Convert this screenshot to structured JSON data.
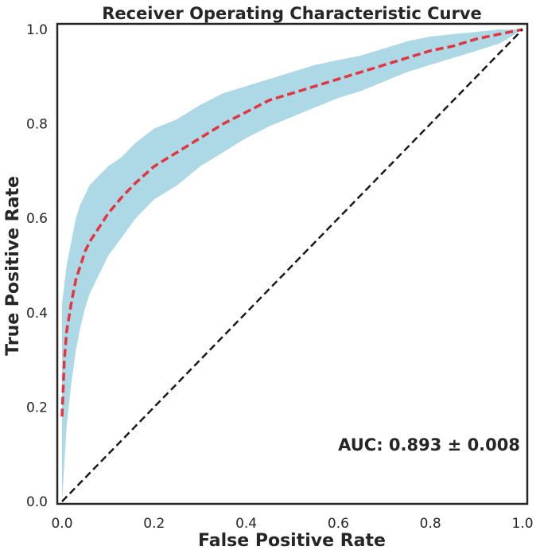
{
  "chart_data": {
    "type": "line",
    "title": "Receiver Operating Characteristic Curve",
    "xlabel": "False Positive Rate",
    "ylabel": "True Positive Rate",
    "xlim": [
      0.0,
      1.0
    ],
    "ylim": [
      0.0,
      1.0
    ],
    "xticks": [
      0.0,
      0.2,
      0.4,
      0.6,
      0.8,
      1.0
    ],
    "yticks": [
      0.0,
      0.2,
      0.4,
      0.6,
      0.8,
      1.0
    ],
    "xtick_labels": [
      "0.0",
      "0.2",
      "0.4",
      "0.6",
      "0.8",
      "1.0"
    ],
    "ytick_labels": [
      "0.0",
      "0.2",
      "0.4",
      "0.6",
      "0.8",
      "1.0"
    ],
    "grid": false,
    "annotation": "AUC: 0.893 ± 0.008",
    "colors": {
      "mean_line": "#e3343f",
      "band": "#add8e6",
      "chance_line": "#1a1a1a",
      "frame": "#262626"
    },
    "series": [
      {
        "style": "dashed",
        "color": "#e3343f",
        "x": [
          0.0,
          0.005,
          0.01,
          0.02,
          0.03,
          0.04,
          0.05,
          0.06,
          0.08,
          0.1,
          0.13,
          0.16,
          0.2,
          0.25,
          0.3,
          0.35,
          0.4,
          0.45,
          0.5,
          0.55,
          0.6,
          0.65,
          0.7,
          0.75,
          0.8,
          0.85,
          0.9,
          0.95,
          1.0
        ],
        "y": [
          0.18,
          0.3,
          0.36,
          0.42,
          0.47,
          0.5,
          0.53,
          0.55,
          0.58,
          0.61,
          0.645,
          0.675,
          0.71,
          0.74,
          0.77,
          0.8,
          0.825,
          0.85,
          0.865,
          0.88,
          0.895,
          0.91,
          0.925,
          0.94,
          0.955,
          0.965,
          0.98,
          0.99,
          1.0
        ]
      },
      {
        "style": "dashed",
        "color": "#1a1a1a",
        "x": [
          0.0,
          1.0
        ],
        "y": [
          0.0,
          1.0
        ]
      }
    ],
    "band": {
      "x": [
        0.0,
        0.005,
        0.01,
        0.02,
        0.03,
        0.04,
        0.05,
        0.06,
        0.08,
        0.1,
        0.13,
        0.16,
        0.2,
        0.25,
        0.3,
        0.35,
        0.4,
        0.45,
        0.5,
        0.55,
        0.6,
        0.65,
        0.7,
        0.75,
        0.8,
        0.85,
        0.9,
        0.95,
        1.0
      ],
      "lower": [
        0.0,
        0.08,
        0.16,
        0.25,
        0.32,
        0.37,
        0.41,
        0.44,
        0.48,
        0.52,
        0.56,
        0.6,
        0.64,
        0.67,
        0.71,
        0.74,
        0.77,
        0.795,
        0.815,
        0.835,
        0.855,
        0.87,
        0.89,
        0.91,
        0.925,
        0.94,
        0.955,
        0.97,
        1.0
      ],
      "upper": [
        0.42,
        0.46,
        0.5,
        0.55,
        0.6,
        0.63,
        0.65,
        0.67,
        0.69,
        0.71,
        0.73,
        0.76,
        0.79,
        0.81,
        0.84,
        0.865,
        0.88,
        0.895,
        0.91,
        0.925,
        0.935,
        0.945,
        0.96,
        0.975,
        0.985,
        0.99,
        0.995,
        1.0,
        1.0
      ]
    }
  }
}
